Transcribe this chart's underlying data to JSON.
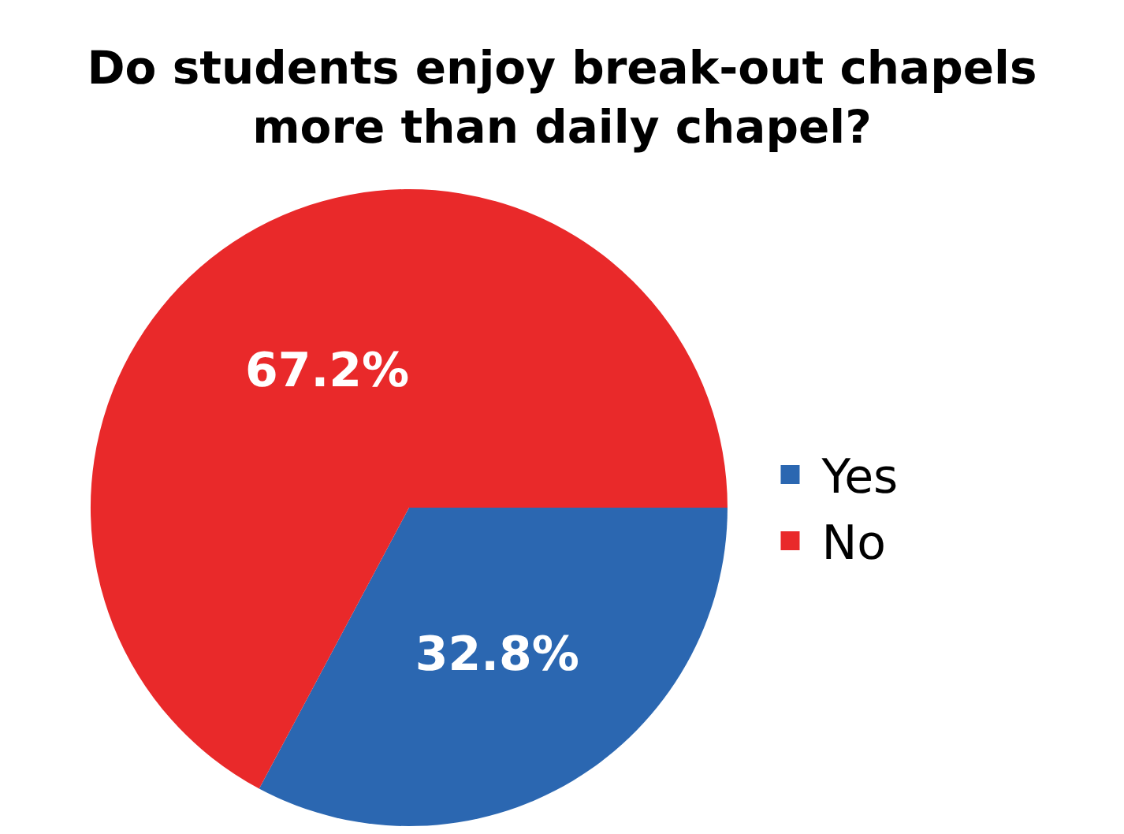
{
  "chart_data": {
    "type": "pie",
    "title": "Do students enjoy break-out chapels more than daily chapel?",
    "categories": [
      "Yes",
      "No"
    ],
    "values": [
      32.8,
      67.2
    ],
    "colors": [
      "#2b67b1",
      "#e9292a"
    ],
    "value_labels": [
      "32.8%",
      "67.2%"
    ],
    "legend": "right"
  }
}
